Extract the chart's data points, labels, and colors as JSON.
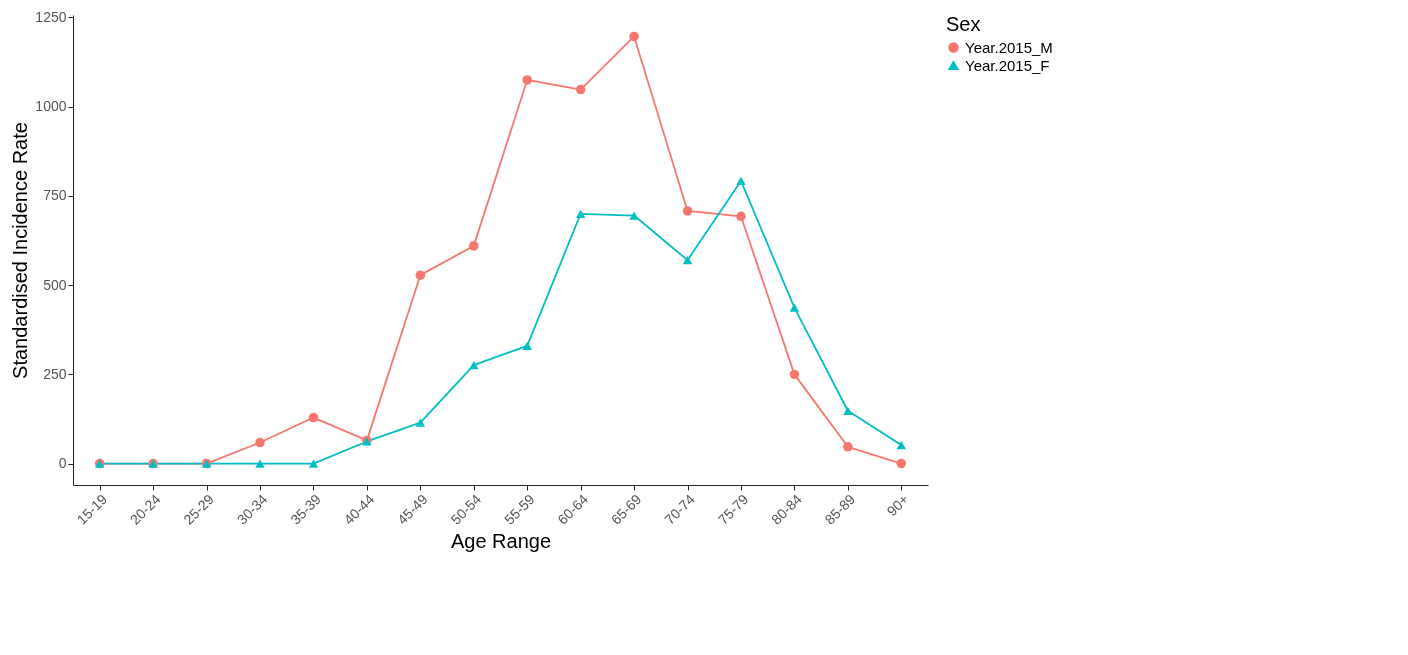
{
  "chart_data": {
    "type": "line",
    "xlabel": "Age Range",
    "ylabel": "Standardised Incidence Rate",
    "legend_title": "Sex",
    "legend": "right",
    "grid": false,
    "categories": [
      "15-19",
      "20-24",
      "25-29",
      "30-34",
      "35-39",
      "40-44",
      "45-49",
      "50-54",
      "55-59",
      "60-64",
      "65-69",
      "70-74",
      "75-79",
      "80-84",
      "85-89",
      "90+"
    ],
    "ylim": [
      -60,
      1257
    ],
    "yticks": [
      0,
      250,
      500,
      750,
      1000,
      1250
    ],
    "series": [
      {
        "name": "Year.2015_M",
        "color": "#f8766d",
        "marker": "circle",
        "values": [
          0,
          0,
          0,
          59,
          129,
          65,
          528,
          610,
          1075,
          1048,
          1197,
          708,
          693,
          250,
          47,
          0
        ]
      },
      {
        "name": "Year.2015_F",
        "color": "#00bfc4",
        "marker": "triangle",
        "values": [
          0,
          0,
          0,
          0,
          0,
          62,
          115,
          276,
          330,
          700,
          695,
          570,
          792,
          437,
          148,
          52
        ]
      }
    ]
  }
}
